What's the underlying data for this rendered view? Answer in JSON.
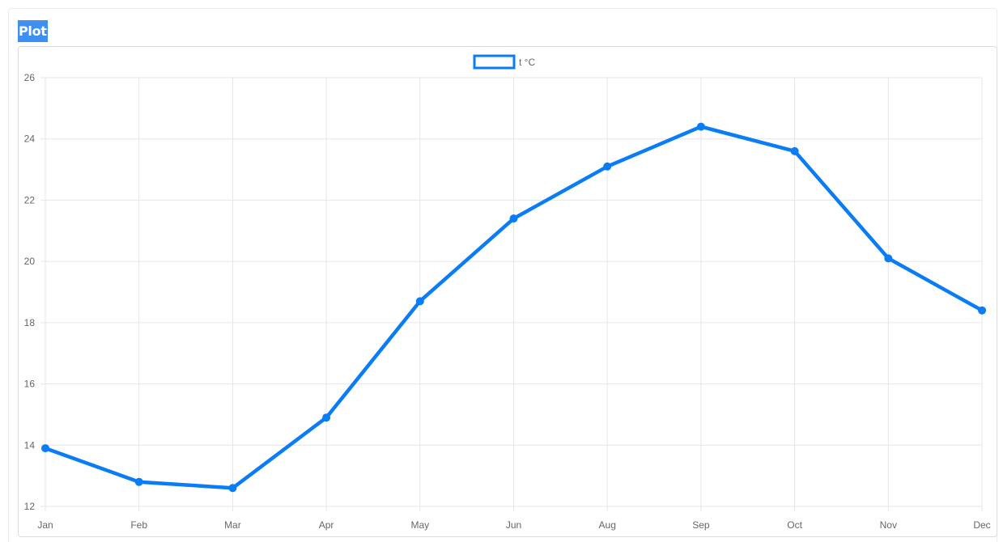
{
  "header": {
    "title": "Plot"
  },
  "colors": {
    "series": "#0a7cf5",
    "grid": "#e6e6e6",
    "tick_text": "#666666",
    "title_bg": "#3d8ff2"
  },
  "chart_data": {
    "type": "line",
    "categories": [
      "Jan",
      "Feb",
      "Mar",
      "Apr",
      "May",
      "Jun",
      "Aug",
      "Sep",
      "Oct",
      "Nov",
      "Dec"
    ],
    "series": [
      {
        "name": "t °C",
        "values": [
          13.9,
          12.8,
          12.6,
          14.9,
          18.7,
          21.4,
          23.1,
          24.4,
          23.6,
          20.1,
          18.4
        ]
      }
    ],
    "ylim": [
      12,
      26
    ],
    "yticks": [
      "26",
      "24",
      "22",
      "20",
      "18",
      "16",
      "14",
      "12"
    ],
    "grid": true,
    "legend": "top-center"
  }
}
